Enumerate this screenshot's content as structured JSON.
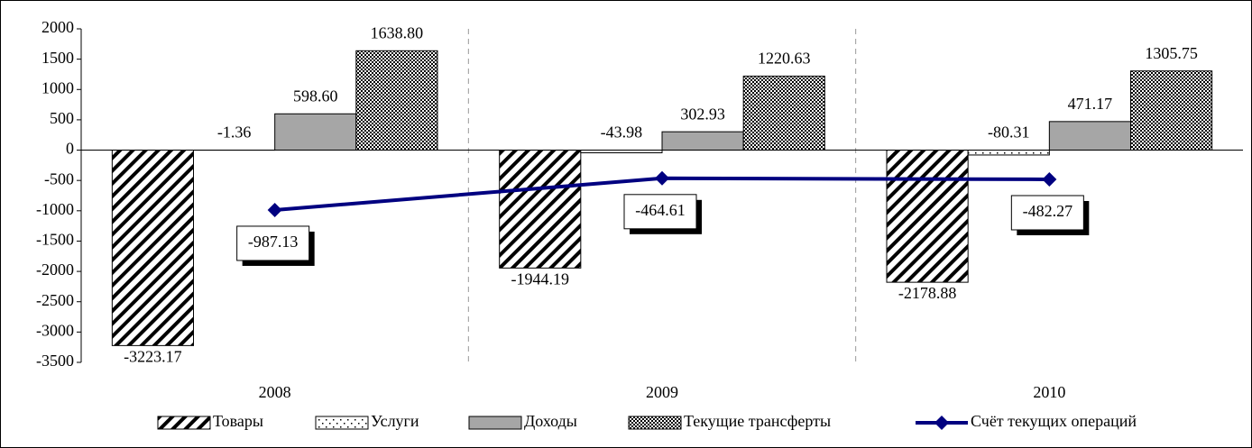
{
  "chart_data": {
    "type": "bar",
    "categories": [
      "2008",
      "2009",
      "2010"
    ],
    "ylim": [
      -3500,
      2000
    ],
    "yticks": [
      -3500,
      -3000,
      -2500,
      -2000,
      -1500,
      -1000,
      -500,
      0,
      500,
      1000,
      1500,
      2000
    ],
    "series": [
      {
        "name": "Товары",
        "color": "#000000",
        "pattern": "diagonal",
        "values": [
          -3223.17,
          -1944.19,
          -2178.88
        ],
        "value_labels": [
          "-3223.17",
          "-1944.19",
          "-2178.88"
        ]
      },
      {
        "name": "Услуги",
        "color": "#000000",
        "pattern": "dots",
        "values": [
          -1.36,
          -43.98,
          -80.31
        ],
        "value_labels": [
          "-1.36",
          "-43.98",
          "-80.31"
        ]
      },
      {
        "name": "Доходы",
        "color": "#a6a6a6",
        "pattern": "solid",
        "values": [
          598.6,
          302.93,
          471.17
        ],
        "value_labels": [
          "598.60",
          "302.93",
          "471.17"
        ]
      },
      {
        "name": "Текущие трансферты",
        "color": "#000000",
        "pattern": "checker",
        "values": [
          1638.8,
          1220.63,
          1305.75
        ],
        "value_labels": [
          "1638.80",
          "1220.63",
          "1305.75"
        ]
      },
      {
        "name": "Счёт текущих операций",
        "type": "line",
        "color": "#000080",
        "values": [
          -987.13,
          -464.61,
          -482.27
        ],
        "value_labels": [
          "-987.13",
          "-464.61",
          "-482.27"
        ]
      }
    ],
    "legend": "bottom"
  }
}
